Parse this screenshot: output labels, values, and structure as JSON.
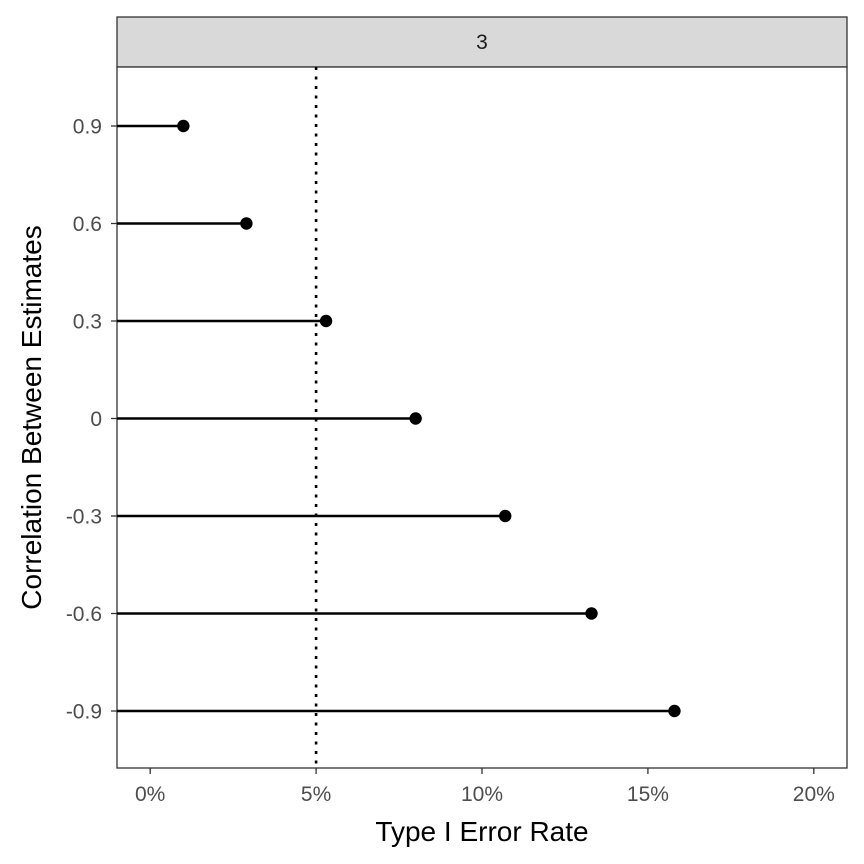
{
  "chart_data": {
    "type": "lollipop",
    "facet_label": "3",
    "xlabel": "Type I Error Rate",
    "ylabel": "Correlation Between Estimates",
    "xlim": [
      -1,
      21
    ],
    "x_ticks": [
      0,
      5,
      10,
      15,
      20
    ],
    "x_tick_labels": [
      "0%",
      "5%",
      "10%",
      "15%",
      "20%"
    ],
    "categories": [
      "0.9",
      "0.6",
      "0.3",
      "0",
      "-0.3",
      "-0.6",
      "-0.9"
    ],
    "values": [
      1.0,
      2.9,
      5.3,
      8.0,
      10.7,
      13.3,
      15.8
    ],
    "reference_line": {
      "x": 5,
      "style": "dotted"
    },
    "grid": false,
    "colors": {
      "marks": "#000000",
      "strip_bg": "#d9d9d9",
      "panel_border": "#333333"
    }
  }
}
